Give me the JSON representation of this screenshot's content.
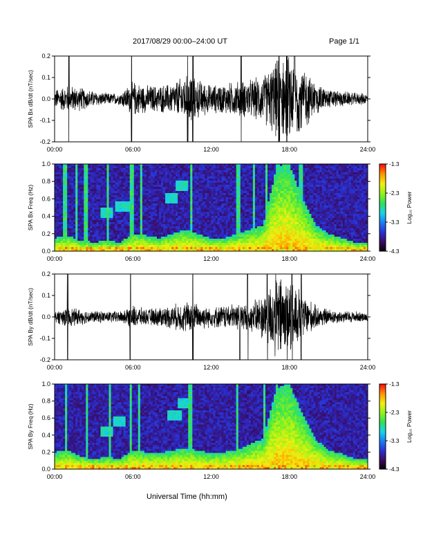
{
  "header": {
    "title": "2017/08/29  00:00–24:00 UT",
    "page": "Page 1/1"
  },
  "xaxis_label": "Universal Time (hh:mm)",
  "time_ticks": [
    "00:00",
    "06:00",
    "12:00",
    "18:00",
    "24:00"
  ],
  "colorbar": {
    "label": "Log₁₀ Power",
    "ticks": [
      "-1.3",
      "-2.3",
      "-3.3",
      "-4.3"
    ],
    "colors": [
      "#000000",
      "#3a0a5e",
      "#2a2fd0",
      "#1a7cf5",
      "#16d4e8",
      "#2ee05a",
      "#8ff21c",
      "#f0f010",
      "#ff9a00",
      "#ff1010"
    ]
  },
  "chart_data": [
    {
      "type": "line",
      "id": "bx-dbdt",
      "ylabel": "SPA Bx dB/dt (nT/sec)",
      "ylim": [
        -0.2,
        0.2
      ],
      "yticks": [
        "0.2",
        "0.1",
        "0.0",
        "-0.1",
        "-0.2"
      ],
      "xlim_hours": [
        0,
        24
      ],
      "xticks": [
        "00:00",
        "06:00",
        "12:00",
        "18:00",
        "24:00"
      ],
      "envelope_hours": [
        0,
        1,
        2,
        3,
        4,
        5,
        6,
        7,
        8,
        9,
        10,
        11,
        12,
        13,
        14,
        15,
        16,
        17,
        18,
        19,
        20,
        21,
        22,
        23,
        24
      ],
      "envelope_amplitude": [
        0.05,
        0.07,
        0.06,
        0.04,
        0.03,
        0.03,
        0.09,
        0.07,
        0.07,
        0.08,
        0.12,
        0.1,
        0.07,
        0.08,
        0.09,
        0.1,
        0.12,
        0.2,
        0.22,
        0.17,
        0.08,
        0.05,
        0.04,
        0.03,
        0.03
      ],
      "spikes_hours": [
        1.1,
        5.9,
        10.2,
        10.6,
        14.3,
        17.2,
        17.8,
        18.4
      ]
    },
    {
      "type": "heatmap",
      "id": "bx-spectrogram",
      "ylabel": "SPA Bx Freq (Hz)",
      "ylim": [
        0.0,
        1.0
      ],
      "yticks": [
        "1.0",
        "0.8",
        "0.6",
        "0.4",
        "0.2",
        "0.0"
      ],
      "xlim_hours": [
        0,
        24
      ],
      "xticks": [
        "00:00",
        "06:00",
        "12:00",
        "18:00",
        "24:00"
      ],
      "power_range": [
        -4.3,
        -1.3
      ],
      "band_hours": [
        0,
        1,
        2,
        3,
        4,
        5,
        6,
        7,
        8,
        9,
        10,
        11,
        12,
        13,
        14,
        15,
        16,
        17,
        18,
        19,
        20,
        21,
        22,
        23,
        24
      ],
      "band_top_hz": [
        0.15,
        0.18,
        0.12,
        0.1,
        0.12,
        0.1,
        0.2,
        0.18,
        0.15,
        0.2,
        0.25,
        0.2,
        0.15,
        0.15,
        0.2,
        0.25,
        0.3,
        0.95,
        1.0,
        0.6,
        0.3,
        0.2,
        0.15,
        0.1,
        0.1
      ],
      "streak_hours": [
        0.8,
        1.7,
        2.4,
        4.1,
        5.9,
        6.6,
        10.5,
        14.1,
        15.3,
        16.2,
        17.1,
        17.6,
        18.9
      ],
      "hump_hours": [
        4.0,
        5.2,
        9.0,
        9.8
      ],
      "hump_hz": [
        0.45,
        0.52,
        0.6,
        0.75
      ]
    },
    {
      "type": "line",
      "id": "by-dbdt",
      "ylabel": "SPA By dB/dt (nT/sec)",
      "ylim": [
        -0.2,
        0.2
      ],
      "yticks": [
        "0.2",
        "0.1",
        "0.0",
        "-0.1",
        "-0.2"
      ],
      "xlim_hours": [
        0,
        24
      ],
      "xticks": [
        "00:00",
        "06:00",
        "12:00",
        "18:00",
        "24:00"
      ],
      "envelope_hours": [
        0,
        1,
        2,
        3,
        4,
        5,
        6,
        7,
        8,
        9,
        10,
        11,
        12,
        13,
        14,
        15,
        16,
        17,
        18,
        19,
        20,
        21,
        22,
        23,
        24
      ],
      "envelope_amplitude": [
        0.03,
        0.05,
        0.04,
        0.03,
        0.03,
        0.03,
        0.06,
        0.04,
        0.05,
        0.06,
        0.08,
        0.07,
        0.05,
        0.06,
        0.07,
        0.07,
        0.12,
        0.22,
        0.22,
        0.12,
        0.06,
        0.04,
        0.03,
        0.03,
        0.02
      ],
      "spikes_hours": [
        1.0,
        5.8,
        10.6,
        14.2,
        14.8,
        16.3,
        18.2,
        18.9
      ]
    },
    {
      "type": "heatmap",
      "id": "by-spectrogram",
      "ylabel": "SPA By Freq (Hz)",
      "ylim": [
        0.0,
        1.0
      ],
      "yticks": [
        "1.0",
        "0.8",
        "0.6",
        "0.4",
        "0.2",
        "0.0"
      ],
      "xlim_hours": [
        0,
        24
      ],
      "xticks": [
        "00:00",
        "06:00",
        "12:00",
        "18:00",
        "24:00"
      ],
      "power_range": [
        -4.3,
        -1.3
      ],
      "band_hours": [
        0,
        1,
        2,
        3,
        4,
        5,
        6,
        7,
        8,
        9,
        10,
        11,
        12,
        13,
        14,
        15,
        16,
        17,
        18,
        19,
        20,
        21,
        22,
        23,
        24
      ],
      "band_top_hz": [
        0.2,
        0.22,
        0.15,
        0.12,
        0.14,
        0.12,
        0.22,
        0.2,
        0.18,
        0.22,
        0.25,
        0.22,
        0.18,
        0.2,
        0.22,
        0.3,
        0.35,
        0.95,
        1.0,
        0.65,
        0.35,
        0.22,
        0.18,
        0.12,
        0.12
      ],
      "streak_hours": [
        0.9,
        2.5,
        4.3,
        5.8,
        6.5,
        10.4,
        14.0,
        16.1,
        17.0,
        17.7
      ],
      "hump_hours": [
        4.0,
        5.0,
        9.2,
        9.9
      ],
      "hump_hz": [
        0.45,
        0.55,
        0.62,
        0.78
      ]
    }
  ]
}
